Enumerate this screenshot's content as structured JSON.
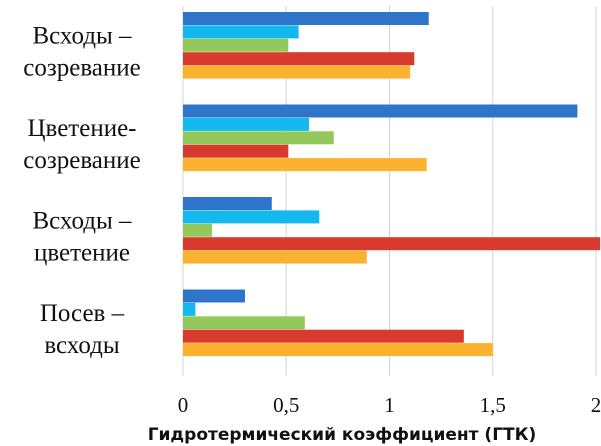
{
  "chart_data": {
    "type": "bar",
    "orientation": "horizontal",
    "categories": [
      [
        "Всходы –",
        "созревание"
      ],
      [
        "Цветение-",
        "созревание"
      ],
      [
        "Всходы –",
        "цветение"
      ],
      [
        "Посев –",
        "всходы"
      ]
    ],
    "series": [
      {
        "color": "#2E75C9",
        "values": [
          1.19,
          1.91,
          0.43,
          0.3
        ]
      },
      {
        "color": "#12B8EE",
        "values": [
          0.56,
          0.61,
          0.66,
          0.06
        ]
      },
      {
        "color": "#92C95A",
        "values": [
          0.51,
          0.73,
          0.14,
          0.59
        ]
      },
      {
        "color": "#D93A2E",
        "values": [
          1.12,
          0.51,
          2.02,
          1.36
        ]
      },
      {
        "color": "#FBB22F",
        "values": [
          1.1,
          1.18,
          0.89,
          1.5
        ]
      }
    ],
    "xlim": [
      0,
      2
    ],
    "xticks": [
      "0",
      "0,5",
      "1",
      "1,5",
      "2"
    ],
    "xlabel": "Гидротермический коэффициент (ГТК)",
    "ylabel": "",
    "title": "",
    "grid": true,
    "legend": "none"
  }
}
